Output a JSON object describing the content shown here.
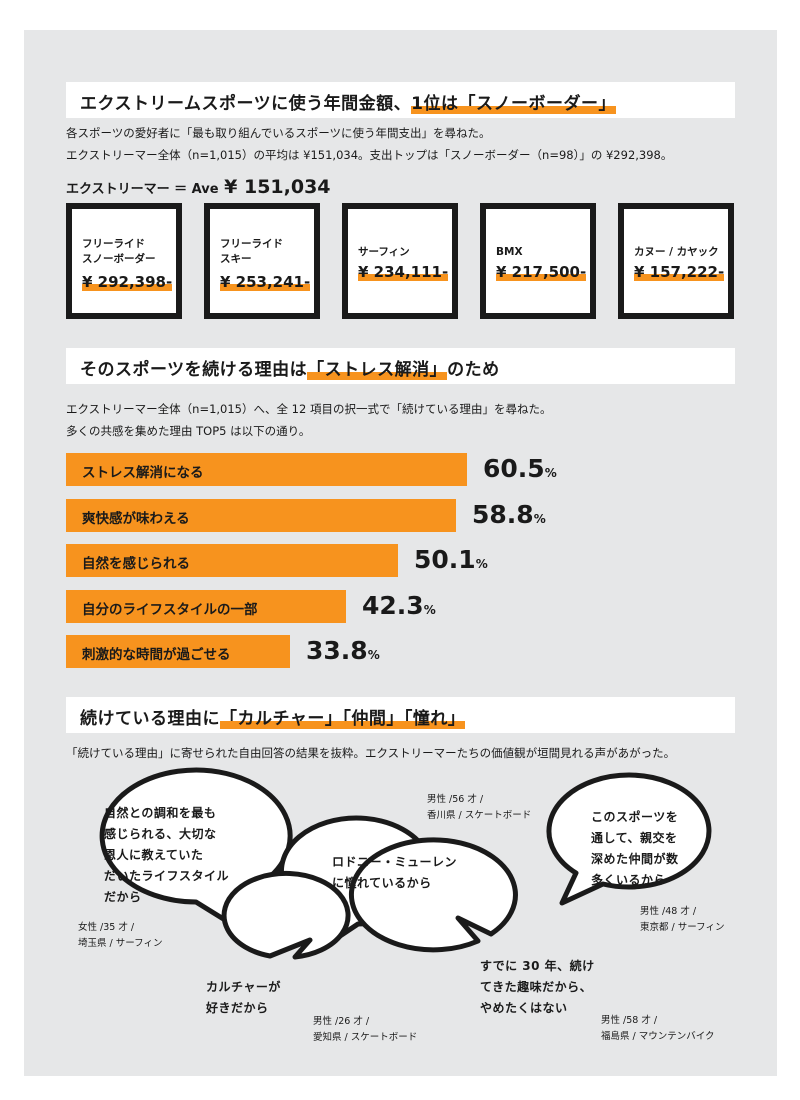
{
  "section1": {
    "heading_pre": "エクストリームスポーツに使う年間金額、",
    "heading_hl": "1位は「スノーボーダー」",
    "desc1": "各スポーツの愛好者に「最も取り組んでいるスポーツに使う年間支出」を尋ねた。",
    "desc2": "エクストリーマー全体（n=1,015）の平均は ¥151,034。支出トップは「スノーボーダー（n=98）」の ¥292,398。",
    "ave_label": "エクストリーマー ＝ Ave",
    "ave_value": "¥ 151,034",
    "cards": [
      {
        "name": "フリーライド\nスノーボーダー",
        "value": "¥ 292,398-"
      },
      {
        "name": "フリーライド\nスキー",
        "value": "¥ 253,241-"
      },
      {
        "name": "サーフィン",
        "value": "¥ 234,111-"
      },
      {
        "name": "BMX",
        "value": "¥ 217,500-"
      },
      {
        "name": "カヌー / カヤック",
        "value": "¥ 157,222-"
      }
    ]
  },
  "section2": {
    "heading_pre": "そのスポーツを続ける理由は",
    "heading_hl": "「ストレス解消」",
    "heading_post": "のため",
    "desc1": "エクストリーマー全体（n=1,015）へ、全 12 項目の択一式で「続けている理由」を尋ねた。",
    "desc2": "多くの共感を集めた理由 TOP5 は以下の通り。",
    "percent_sign": "%"
  },
  "chart_data": {
    "type": "bar",
    "orientation": "horizontal",
    "categories": [
      "ストレス解消になる",
      "爽快感が味わえる",
      "自然を感じられる",
      "自分のライフスタイルの一部",
      "刺激的な時間が過ごせる"
    ],
    "values": [
      60.5,
      58.8,
      50.1,
      42.3,
      33.8
    ],
    "value_labels": [
      "60.5",
      "58.8",
      "50.1",
      "42.3",
      "33.8"
    ],
    "unit": "%",
    "bar_color": "#f7931e"
  },
  "section3": {
    "heading_pre": "続けている理由に",
    "heading_hl": "「カルチャー」「仲間」「憧れ」",
    "desc": "「続けている理由」に寄せられた自由回答の結果を抜粋。エクストリーマーたちの価値観が垣間見れる声があがった。",
    "quotes": [
      {
        "text": "自然との調和を最も\n感じられる、大切な\n恩人に教えていた\nだいたライフスタイル\nだから",
        "meta": "女性 /35 才 /\n埼玉県 / サーフィン"
      },
      {
        "text": "ロドニー・ミューレン\nに憧れているから",
        "meta": "男性 /56 才 /\n香川県 / スケートボード"
      },
      {
        "text": "このスポーツを\n通して、親交を\n深めた仲間が数\n多くいるから",
        "meta": "男性 /48 才 /\n東京都 / サーフィン"
      },
      {
        "text": "カルチャーが\n好きだから",
        "meta": "男性 /26 才 /\n愛知県 / スケートボード"
      },
      {
        "text": "すでに 30 年、続け\nてきた趣味だから、\nやめたくはない",
        "meta": "男性 /58 才 /\n福島県 / マウンテンバイク"
      }
    ]
  },
  "colors": {
    "accent": "#f7931e",
    "panel": "#e6e7e8",
    "ink": "#1a1a1a"
  }
}
